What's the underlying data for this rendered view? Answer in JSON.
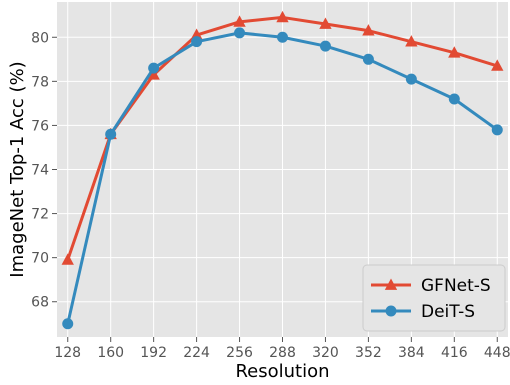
{
  "chart_data": {
    "type": "line",
    "title": "",
    "xlabel": "Resolution",
    "ylabel": "ImageNet Top-1 Acc (%)",
    "x": [
      128,
      160,
      192,
      224,
      256,
      288,
      320,
      352,
      384,
      416,
      448
    ],
    "x_tick_labels": [
      "128",
      "160",
      "192",
      "224",
      "256",
      "288",
      "320",
      "352",
      "384",
      "416",
      "448"
    ],
    "y_ticks": [
      68,
      70,
      72,
      74,
      76,
      78,
      80
    ],
    "y_tick_labels": [
      "68",
      "70",
      "72",
      "74",
      "76",
      "78",
      "80"
    ],
    "xlim": [
      120,
      456
    ],
    "ylim": [
      66.4,
      81.6
    ],
    "grid": true,
    "legend_position": "bottom-right",
    "series": [
      {
        "name": "GFNet-S",
        "color": "#e24a33",
        "marker": "triangle",
        "values": [
          69.9,
          75.6,
          78.3,
          80.1,
          80.7,
          80.9,
          80.6,
          80.3,
          79.8,
          79.3,
          78.7
        ]
      },
      {
        "name": "DeiT-S",
        "color": "#348abd",
        "marker": "circle",
        "values": [
          67.0,
          75.6,
          78.6,
          79.8,
          80.2,
          80.0,
          79.6,
          79.0,
          78.1,
          77.2,
          75.8
        ]
      }
    ],
    "colors": {
      "plot_background": "#e5e5e5",
      "grid": "#ffffff",
      "tick_text": "#555555",
      "label_text": "#000000"
    }
  }
}
